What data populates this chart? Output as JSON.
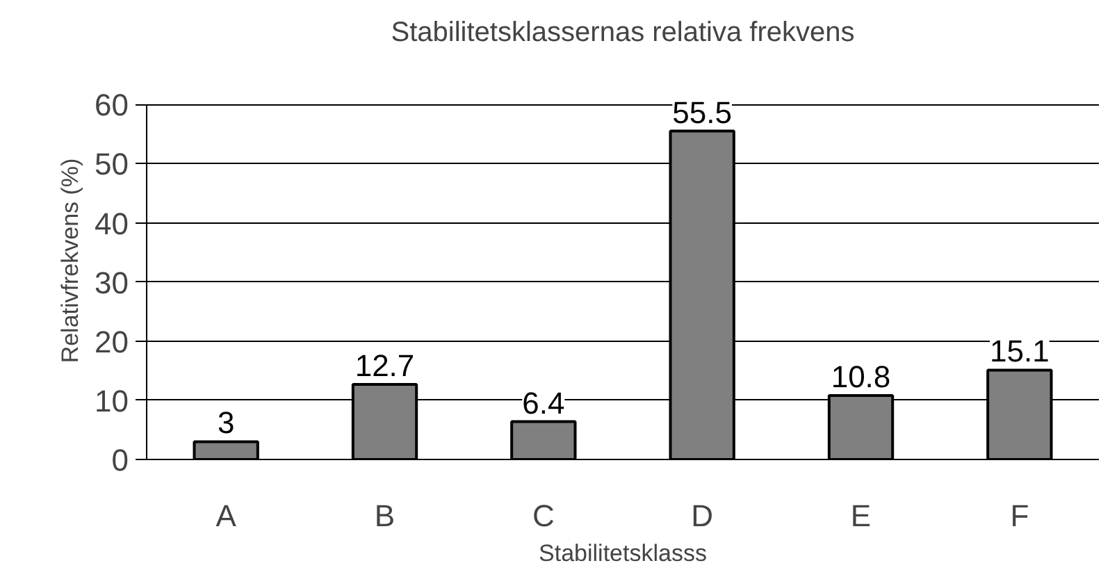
{
  "chart_data": {
    "type": "bar",
    "title": "Stabilitetsklassernas relativa frekvens",
    "xlabel": "Stabilitetsklasss",
    "ylabel": "Relativfrekvens (%)",
    "categories": [
      "A",
      "B",
      "C",
      "D",
      "E",
      "F"
    ],
    "values": [
      3,
      12.7,
      6.4,
      55.5,
      10.8,
      15.1
    ],
    "color": "#808080",
    "ylim": [
      0,
      60
    ],
    "yticks": [
      0,
      10,
      20,
      30,
      40,
      50,
      60
    ],
    "grid": "y",
    "data_labels": true
  }
}
